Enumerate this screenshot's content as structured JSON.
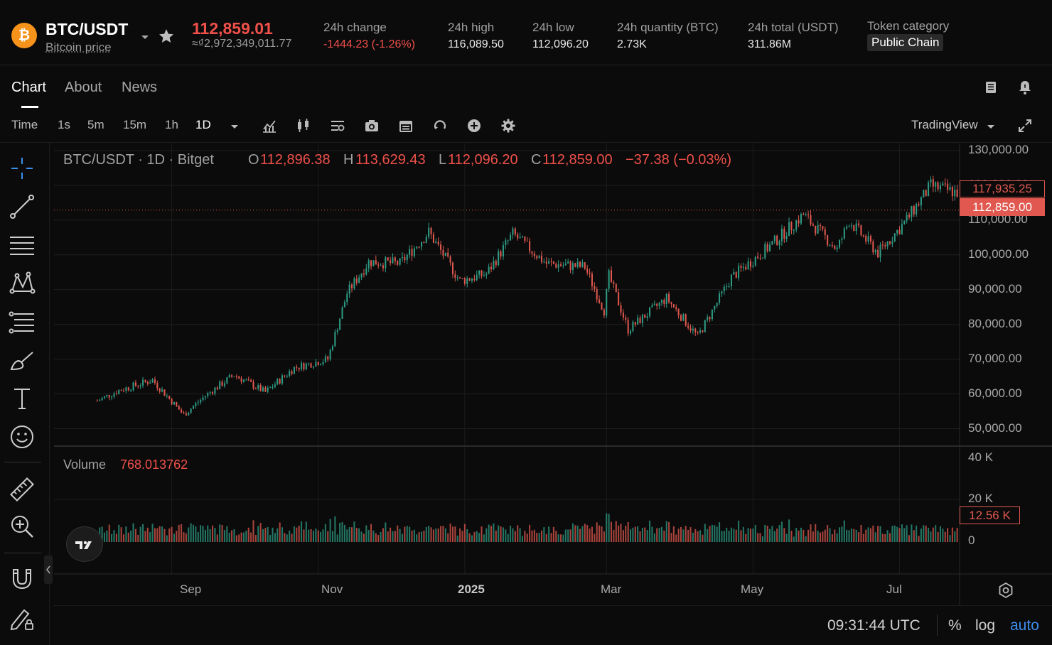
{
  "header": {
    "coin_symbol": "₿",
    "pair": "BTC/USDT",
    "pair_sub": "Bitcoin price",
    "price": "112,859.01",
    "price_local": "≈₫2,972,349,011.77",
    "stats": [
      {
        "label": "24h change",
        "value": "-1444.23 (-1.26%)",
        "negative": true
      },
      {
        "label": "24h high",
        "value": "116,089.50"
      },
      {
        "label": "24h low",
        "value": "112,096.20"
      },
      {
        "label": "24h quantity (BTC)",
        "value": "2.73K"
      },
      {
        "label": "24h total (USDT)",
        "value": "311.86M"
      }
    ],
    "token_category_label": "Token category",
    "token_category_value": "Public Chain"
  },
  "tabs": [
    "Chart",
    "About",
    "News"
  ],
  "toolbar": {
    "time_label": "Time",
    "intervals": [
      "1s",
      "5m",
      "15m",
      "1h",
      "1D"
    ],
    "selected_interval": "1D",
    "provider": "TradingView"
  },
  "legend": {
    "symbol": "BTC/USDT · 1D · Bitget",
    "o_label": "O",
    "o": "112,896.38",
    "h_label": "H",
    "h": "113,629.43",
    "l_label": "L",
    "l": "112,096.20",
    "c_label": "C",
    "c": "112,859.00",
    "change": "−37.38 (−0.03%)",
    "volume_label": "Volume",
    "volume": "768.013762"
  },
  "price_axis_ticks": [
    "130,000.00",
    "120,000.00",
    "110,000.00",
    "100,000.00",
    "90,000.00",
    "80,000.00",
    "70,000.00",
    "60,000.00",
    "50,000.00"
  ],
  "price_tags": {
    "last_high": "117,935.25",
    "current": "112,859.00"
  },
  "volume_axis_ticks": [
    "40 K",
    "20 K",
    "0"
  ],
  "volume_tag": "12.56 K",
  "time_axis_ticks": [
    "Sep",
    "Nov",
    "2025",
    "Mar",
    "May",
    "Jul"
  ],
  "footer": {
    "clock": "09:31:44 UTC",
    "percent": "%",
    "log": "log",
    "auto": "auto"
  },
  "colors": {
    "up": "#2e9c84",
    "down": "#e0584f",
    "accent": "#3d8eea",
    "bg": "#0b0b0b"
  },
  "chart_data": {
    "type": "candlestick",
    "title": "BTC/USDT · 1D · Bitget",
    "ylim": [
      45000,
      132000
    ],
    "grid": true,
    "keypoints": [
      {
        "date": "2024-08-01",
        "close": 58000
      },
      {
        "date": "2024-08-10",
        "close": 61000
      },
      {
        "date": "2024-08-24",
        "close": 64000
      },
      {
        "date": "2024-09-06",
        "close": 54000
      },
      {
        "date": "2024-09-15",
        "close": 59500
      },
      {
        "date": "2024-09-27",
        "close": 65500
      },
      {
        "date": "2024-10-10",
        "close": 60500
      },
      {
        "date": "2024-10-22",
        "close": 67500
      },
      {
        "date": "2024-11-05",
        "close": 70000
      },
      {
        "date": "2024-11-13",
        "close": 89000
      },
      {
        "date": "2024-11-22",
        "close": 98000
      },
      {
        "date": "2024-12-05",
        "close": 97500
      },
      {
        "date": "2024-12-17",
        "close": 106500
      },
      {
        "date": "2024-12-30",
        "close": 92500
      },
      {
        "date": "2025-01-10",
        "close": 94500
      },
      {
        "date": "2025-01-21",
        "close": 106000
      },
      {
        "date": "2025-02-04",
        "close": 97500
      },
      {
        "date": "2025-02-20",
        "close": 96500
      },
      {
        "date": "2025-02-28",
        "close": 84000
      },
      {
        "date": "2025-03-02",
        "close": 94000
      },
      {
        "date": "2025-03-10",
        "close": 78500
      },
      {
        "date": "2025-03-26",
        "close": 87500
      },
      {
        "date": "2025-04-08",
        "close": 76500
      },
      {
        "date": "2025-04-22",
        "close": 93500
      },
      {
        "date": "2025-05-08",
        "close": 102500
      },
      {
        "date": "2025-05-22",
        "close": 111500
      },
      {
        "date": "2025-06-05",
        "close": 101500
      },
      {
        "date": "2025-06-10",
        "close": 109800
      },
      {
        "date": "2025-06-22",
        "close": 100500
      },
      {
        "date": "2025-07-03",
        "close": 109200
      },
      {
        "date": "2025-07-14",
        "close": 119800
      },
      {
        "date": "2025-07-25",
        "close": 117900
      }
    ],
    "volume_ylim": [
      0,
      40000
    ]
  }
}
